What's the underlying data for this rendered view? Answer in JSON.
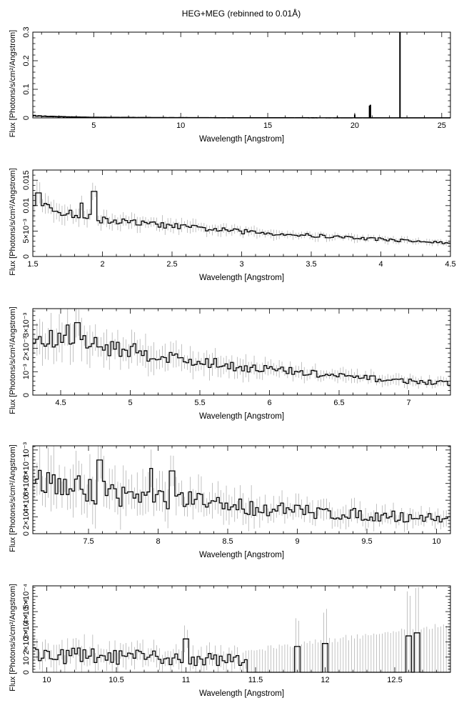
{
  "figure": {
    "title": "HEG+MEG (rebinned to 0.01Å)"
  },
  "chart_data": [
    {
      "type": "line",
      "title": "HEG+MEG (rebinned to 0.01Å)",
      "xlabel": "Wavelength [Angstrom]",
      "ylabel": "Flux [Photons/s/cm²/Angstrom]",
      "xlim": [
        1.5,
        25.5
      ],
      "ylim": [
        0,
        0.3
      ],
      "xticks": [
        {
          "v": 5,
          "label": "5"
        },
        {
          "v": 10,
          "label": "10"
        },
        {
          "v": 15,
          "label": "15"
        },
        {
          "v": 20,
          "label": "20"
        },
        {
          "v": 25,
          "label": "25"
        }
      ],
      "yticks": [
        {
          "v": 0,
          "label": "0"
        },
        {
          "v": 0.1,
          "label": "0.1"
        },
        {
          "v": 0.2,
          "label": "0.2"
        },
        {
          "v": 0.3,
          "label": "0.3"
        }
      ],
      "continuum": {
        "x": [
          1.5,
          2.0,
          3.0,
          5.0,
          8.0,
          12.0,
          18.0,
          25.5
        ],
        "y": [
          0.008,
          0.006,
          0.004,
          0.002,
          0.0012,
          0.0006,
          0.0003,
          0.0002
        ]
      },
      "lines": [
        {
          "x": 19.0,
          "y": 0.004
        },
        {
          "x": 20.0,
          "y": 0.012
        },
        {
          "x": 20.85,
          "y": 0.043
        },
        {
          "x": 20.9,
          "y": 0.046
        },
        {
          "x": 22.6,
          "y": 0.3
        }
      ],
      "series": [
        {
          "values": []
        }
      ]
    },
    {
      "type": "line",
      "xlabel": "Wavelength [Angstrom]",
      "ylabel": "Flux [Photons/s/cm²/Angstrom]",
      "xlim": [
        1.5,
        4.5
      ],
      "ylim": [
        0,
        0.017
      ],
      "xticks": [
        {
          "v": 1.5,
          "label": "1.5"
        },
        {
          "v": 2,
          "label": "2"
        },
        {
          "v": 2.5,
          "label": "2.5"
        },
        {
          "v": 3,
          "label": "3"
        },
        {
          "v": 3.5,
          "label": "3.5"
        },
        {
          "v": 4,
          "label": "4"
        },
        {
          "v": 4.5,
          "label": "4.5"
        }
      ],
      "yticks": [
        {
          "v": 0,
          "label": "0"
        },
        {
          "v": 0.005,
          "label": "5×10⁻³"
        },
        {
          "v": 0.01,
          "label": "0.01"
        },
        {
          "v": 0.015,
          "label": "0.015"
        }
      ],
      "trend": {
        "x": [
          1.5,
          1.6,
          1.8,
          2.0,
          2.5,
          3.0,
          3.5,
          4.0,
          4.5
        ],
        "y": [
          0.0105,
          0.0095,
          0.0082,
          0.0072,
          0.006,
          0.0049,
          0.0041,
          0.0034,
          0.0026
        ]
      },
      "features": [
        {
          "x": 1.54,
          "y": 0.0125
        },
        {
          "x": 1.85,
          "y": 0.0105
        },
        {
          "x": 1.94,
          "y": 0.0128
        }
      ],
      "noise": 0.09,
      "err": 0.18,
      "series": [
        {
          "values": []
        }
      ]
    },
    {
      "type": "line",
      "xlabel": "Wavelength [Angstrom]",
      "ylabel": "Flux [Photons/s/cm²/Angstrom]",
      "xlim": [
        4.3,
        7.3
      ],
      "ylim": [
        0,
        0.0037
      ],
      "xticks": [
        {
          "v": 4.5,
          "label": "4.5"
        },
        {
          "v": 5,
          "label": "5"
        },
        {
          "v": 5.5,
          "label": "5.5"
        },
        {
          "v": 6,
          "label": "6"
        },
        {
          "v": 6.5,
          "label": "6.5"
        },
        {
          "v": 7,
          "label": "7"
        }
      ],
      "yticks": [
        {
          "v": 0,
          "label": "0"
        },
        {
          "v": 0.001,
          "label": "10⁻³"
        },
        {
          "v": 0.002,
          "label": "2×10⁻³"
        },
        {
          "v": 0.003,
          "label": "3×10⁻³"
        }
      ],
      "trend": {
        "x": [
          4.3,
          4.5,
          4.7,
          5.0,
          5.5,
          6.0,
          6.5,
          7.0,
          7.3
        ],
        "y": [
          0.0023,
          0.0024,
          0.0022,
          0.0019,
          0.0014,
          0.0011,
          0.0008,
          0.0006,
          0.0005
        ]
      },
      "features": [
        {
          "x": 4.55,
          "y": 0.003
        },
        {
          "x": 4.62,
          "y": 0.0031
        }
      ],
      "noise": 0.18,
      "err": 0.3,
      "series": [
        {
          "values": []
        }
      ]
    },
    {
      "type": "line",
      "xlabel": "Wavelength [Angstrom]",
      "ylabel": "Flux [Photons/s/cm²/Angstrom]",
      "xlim": [
        7.1,
        10.1
      ],
      "ylim": [
        0,
        0.00105
      ],
      "xticks": [
        {
          "v": 7.5,
          "label": "7.5"
        },
        {
          "v": 8,
          "label": "8"
        },
        {
          "v": 8.5,
          "label": "8.5"
        },
        {
          "v": 9,
          "label": "9"
        },
        {
          "v": 9.5,
          "label": "9.5"
        },
        {
          "v": 10,
          "label": "10"
        }
      ],
      "yticks": [
        {
          "v": 0,
          "label": "0"
        },
        {
          "v": 0.0002,
          "label": "2×10⁻⁴"
        },
        {
          "v": 0.0004,
          "label": "4×10⁻⁴"
        },
        {
          "v": 0.0006,
          "label": "6×10⁻⁴"
        },
        {
          "v": 0.0008,
          "label": "8×10⁻⁴"
        },
        {
          "v": 0.001,
          "label": "10⁻³"
        }
      ],
      "trend": {
        "x": [
          7.1,
          7.5,
          8.0,
          8.5,
          9.0,
          9.5,
          10.1
        ],
        "y": [
          0.00062,
          0.00052,
          0.00042,
          0.00034,
          0.00027,
          0.00022,
          0.00018
        ]
      },
      "features": [
        {
          "x": 7.58,
          "y": 0.00088
        },
        {
          "x": 7.95,
          "y": 0.00078
        },
        {
          "x": 8.1,
          "y": 0.00075
        }
      ],
      "noise": 0.32,
      "err": 0.45,
      "series": [
        {
          "values": []
        }
      ]
    },
    {
      "type": "line",
      "xlabel": "Wavelength [Angstrom]",
      "ylabel": "Flux [Photons/s/cm²/Angstrom]",
      "xlim": [
        9.9,
        12.9
      ],
      "ylim": [
        0,
        0.00057
      ],
      "xticks": [
        {
          "v": 10,
          "label": "10"
        },
        {
          "v": 10.5,
          "label": "10.5"
        },
        {
          "v": 11,
          "label": "11"
        },
        {
          "v": 11.5,
          "label": "11.5"
        },
        {
          "v": 12,
          "label": "12"
        },
        {
          "v": 12.5,
          "label": "12.5"
        }
      ],
      "yticks": [
        {
          "v": 0,
          "label": "0"
        },
        {
          "v": 0.0001,
          "label": "10⁻⁴"
        },
        {
          "v": 0.0002,
          "label": "2×10⁻⁴"
        },
        {
          "v": 0.0003,
          "label": "3×10⁻⁴"
        },
        {
          "v": 0.0004,
          "label": "4×10⁻⁴"
        },
        {
          "v": 0.0005,
          "label": "5×10⁻⁴"
        }
      ],
      "trend": {
        "x": [
          9.9,
          10.5,
          11.0,
          11.4
        ],
        "y": [
          0.00012,
          0.0001,
          9e-05,
          8e-05
        ]
      },
      "features": [
        {
          "x": 11.0,
          "y": 0.00022
        },
        {
          "x": 11.8,
          "y": 0.00017
        },
        {
          "x": 12.0,
          "y": 0.00019
        },
        {
          "x": 12.6,
          "y": 0.00024
        },
        {
          "x": 12.66,
          "y": 0.00026
        }
      ],
      "noise": 0.5,
      "err": 0.7,
      "sparse_from": 11.45,
      "series": [
        {
          "values": []
        }
      ]
    }
  ]
}
